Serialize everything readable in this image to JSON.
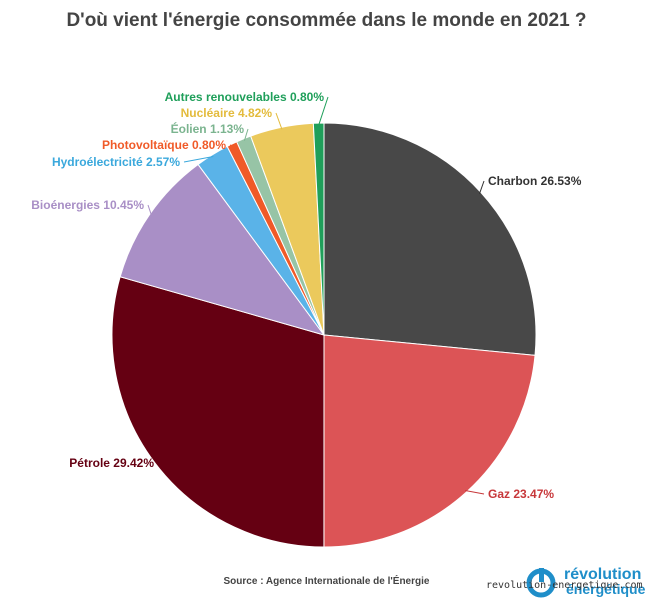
{
  "chart_data": {
    "type": "pie",
    "title": "D'où vient l'énergie consommée dans le monde en 2021 ?",
    "slices": [
      {
        "label": "Charbon 26.53%",
        "value": 26.53,
        "color": "#484848"
      },
      {
        "label": "Gaz 23.47%",
        "value": 23.47,
        "color": "#dc5456"
      },
      {
        "label": "Pétrole 29.42%",
        "value": 29.42,
        "color": "#650012"
      },
      {
        "label": "Bioénergies 10.45%",
        "value": 10.45,
        "color": "#a98fc6"
      },
      {
        "label": "Hydroélectricité 2.57%",
        "value": 2.57,
        "color": "#5ab3e8"
      },
      {
        "label": "Photovoltaïque 0.80%",
        "value": 0.8,
        "color": "#f05a28"
      },
      {
        "label": "Éolien 1.13%",
        "value": 1.13,
        "color": "#97c4a6"
      },
      {
        "label": "Nucléaire 4.82%",
        "value": 4.82,
        "color": "#ebc95c"
      },
      {
        "label": "Autres renouvelables 0.80%",
        "value": 0.8,
        "color": "#1f9f5a"
      }
    ],
    "label_colors": [
      "#333333",
      "#c7373a",
      "#650012",
      "#a98fc6",
      "#3aa8dc",
      "#f05a28",
      "#7bb48f",
      "#e3bb3c",
      "#1f9f5a"
    ]
  },
  "source": "Source : Agence Internationale de l'Énergie",
  "logo": {
    "line1": "révolution",
    "line2": "énergétique"
  },
  "watermark": "revolution-energetique.com"
}
